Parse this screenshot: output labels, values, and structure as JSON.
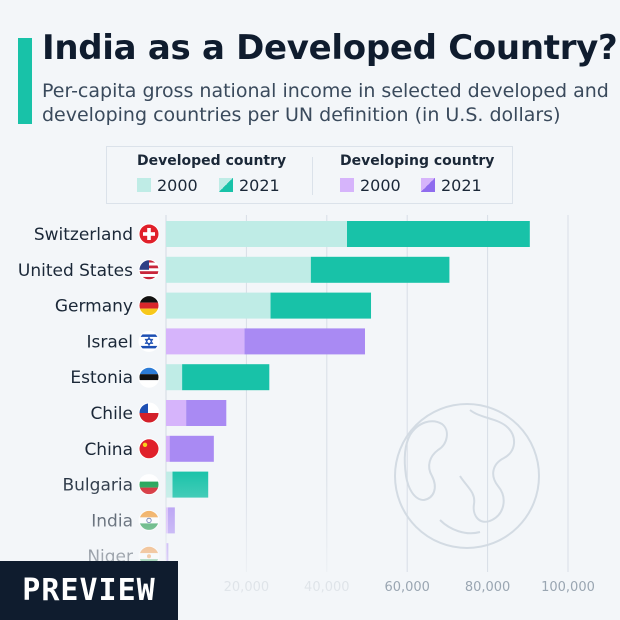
{
  "header": {
    "title": "India as a Developed Country?",
    "subtitle": "Per-capita gross national income in selected developed and developing countries per UN definition (in U.S. dollars)"
  },
  "legend": {
    "developed": {
      "heading": "Developed country",
      "y2000": "2000",
      "y2021": "2021"
    },
    "developing": {
      "heading": "Developing country",
      "y2000": "2000",
      "y2021": "2021"
    }
  },
  "colors": {
    "accent": "#18c2a8",
    "developed_2000": "#bfece6",
    "developed_2021": "#18c2a8",
    "developing_2000": "#d6b4fb",
    "developing_2021": "#a98af3"
  },
  "preview_label": "PREVIEW",
  "chart_data": {
    "type": "bar",
    "orientation": "horizontal",
    "title": "India as a Developed Country?",
    "subtitle": "Per-capita gross national income in selected developed and developing countries per UN definition (in U.S. dollars)",
    "xlim": [
      0,
      100000
    ],
    "xticks": [
      20000,
      40000,
      60000,
      80000,
      100000
    ],
    "xtick_labels": [
      "20,000",
      "40,000",
      "60,000",
      "80,000",
      "100,000"
    ],
    "grid": true,
    "legend_position": "top",
    "categories": [
      "Switzerland",
      "United States",
      "Germany",
      "Israel",
      "Estonia",
      "Chile",
      "China",
      "Bulgaria",
      "India",
      "Niger"
    ],
    "group": [
      "developed",
      "developed",
      "developed",
      "developing",
      "developed",
      "developing",
      "developing",
      "developed",
      "developing",
      "developing"
    ],
    "flag_icons": [
      "switzerland-flag-icon",
      "united-states-flag-icon",
      "germany-flag-icon",
      "israel-flag-icon",
      "estonia-flag-icon",
      "chile-flag-icon",
      "china-flag-icon",
      "bulgaria-flag-icon",
      "india-flag-icon",
      "niger-flag-icon"
    ],
    "series": [
      {
        "name": "2000",
        "values": [
          45000,
          36000,
          26000,
          19500,
          4000,
          5000,
          900,
          1600,
          450,
          160
        ]
      },
      {
        "name": "2021",
        "values": [
          90500,
          70500,
          51000,
          49500,
          25700,
          15000,
          11900,
          10500,
          2200,
          590
        ]
      }
    ]
  }
}
